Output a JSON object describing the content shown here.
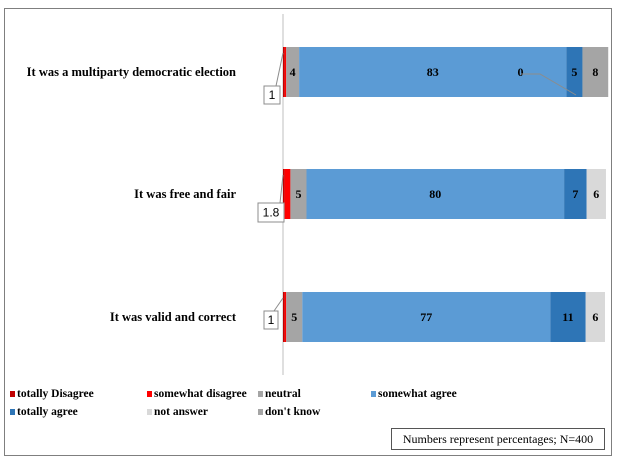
{
  "chart_data": {
    "type": "bar",
    "orientation": "horizontal",
    "stacked": true,
    "categories": [
      "It was a multiparty democratic election",
      "It was free and fair",
      "It was valid and correct"
    ],
    "series": [
      {
        "name": "totally Disagree",
        "color": "#c00000",
        "values": [
          0.5,
          0.5,
          0.5
        ]
      },
      {
        "name": "somewhat disagree",
        "color": "#ff0000",
        "values": [
          0.5,
          1.8,
          0.5
        ]
      },
      {
        "name": "neutral",
        "color": "#a5a5a5",
        "values": [
          4,
          5,
          5
        ]
      },
      {
        "name": "somewhat agree",
        "color": "#5b9bd5",
        "values": [
          83,
          80,
          77
        ]
      },
      {
        "name": "totally agree",
        "color": "#2e75b6",
        "values": [
          5,
          7,
          11
        ]
      },
      {
        "name": "not answer",
        "color": "#d9d9d9",
        "values": [
          0,
          6,
          6
        ]
      },
      {
        "name": "don't know",
        "color": "#a5a5a5",
        "values": [
          8,
          0,
          0
        ]
      }
    ],
    "shown_labels": [
      [
        "",
        "",
        "4",
        "83",
        "5",
        "0",
        "8"
      ],
      [
        "",
        "",
        "5",
        "80",
        "7",
        "6",
        ""
      ],
      [
        "",
        "",
        "5",
        "77",
        "11",
        "6",
        ""
      ]
    ],
    "callouts": [
      "1",
      "1.8",
      "1"
    ],
    "legend_position": "bottom-left",
    "note": "Numbers represent percentages; N=400"
  }
}
